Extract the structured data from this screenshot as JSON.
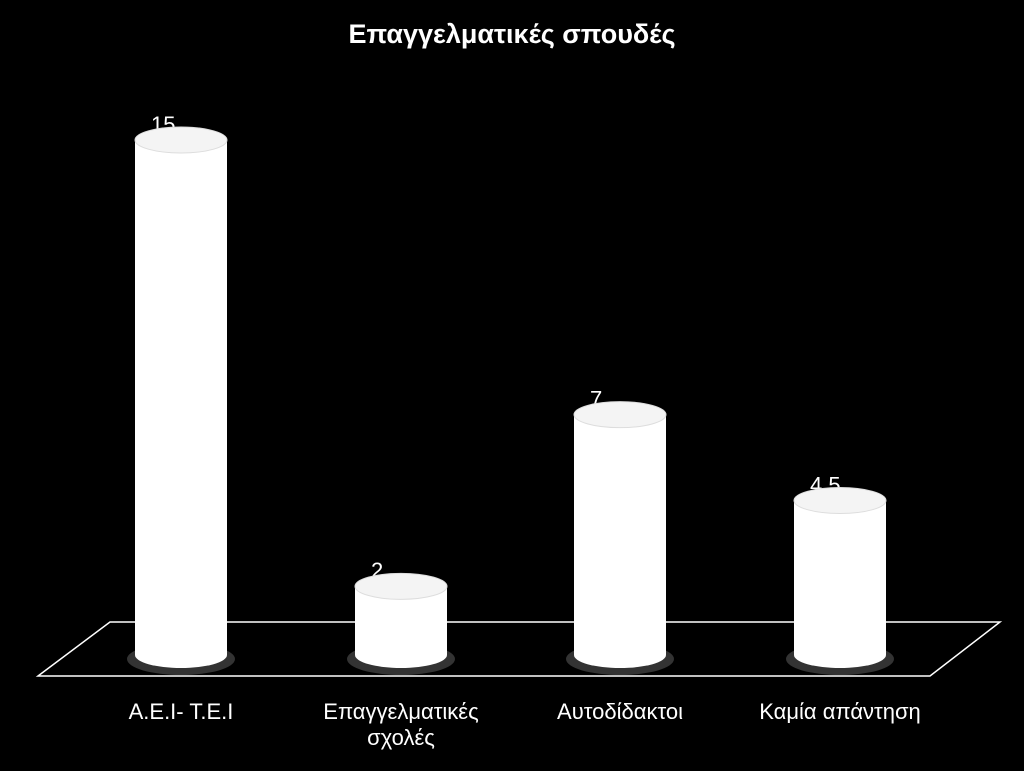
{
  "chart_data": {
    "type": "bar",
    "title": "Επαγγελματικές σπουδές",
    "categories": [
      "Α.Ε.Ι- Τ.Ε.Ι",
      "Επαγγελματικές σχολές",
      "Αυτοδίδακτοι",
      "Καμία απάντηση"
    ],
    "values": [
      15,
      2,
      7,
      4.5
    ],
    "color": "#ffffff"
  }
}
